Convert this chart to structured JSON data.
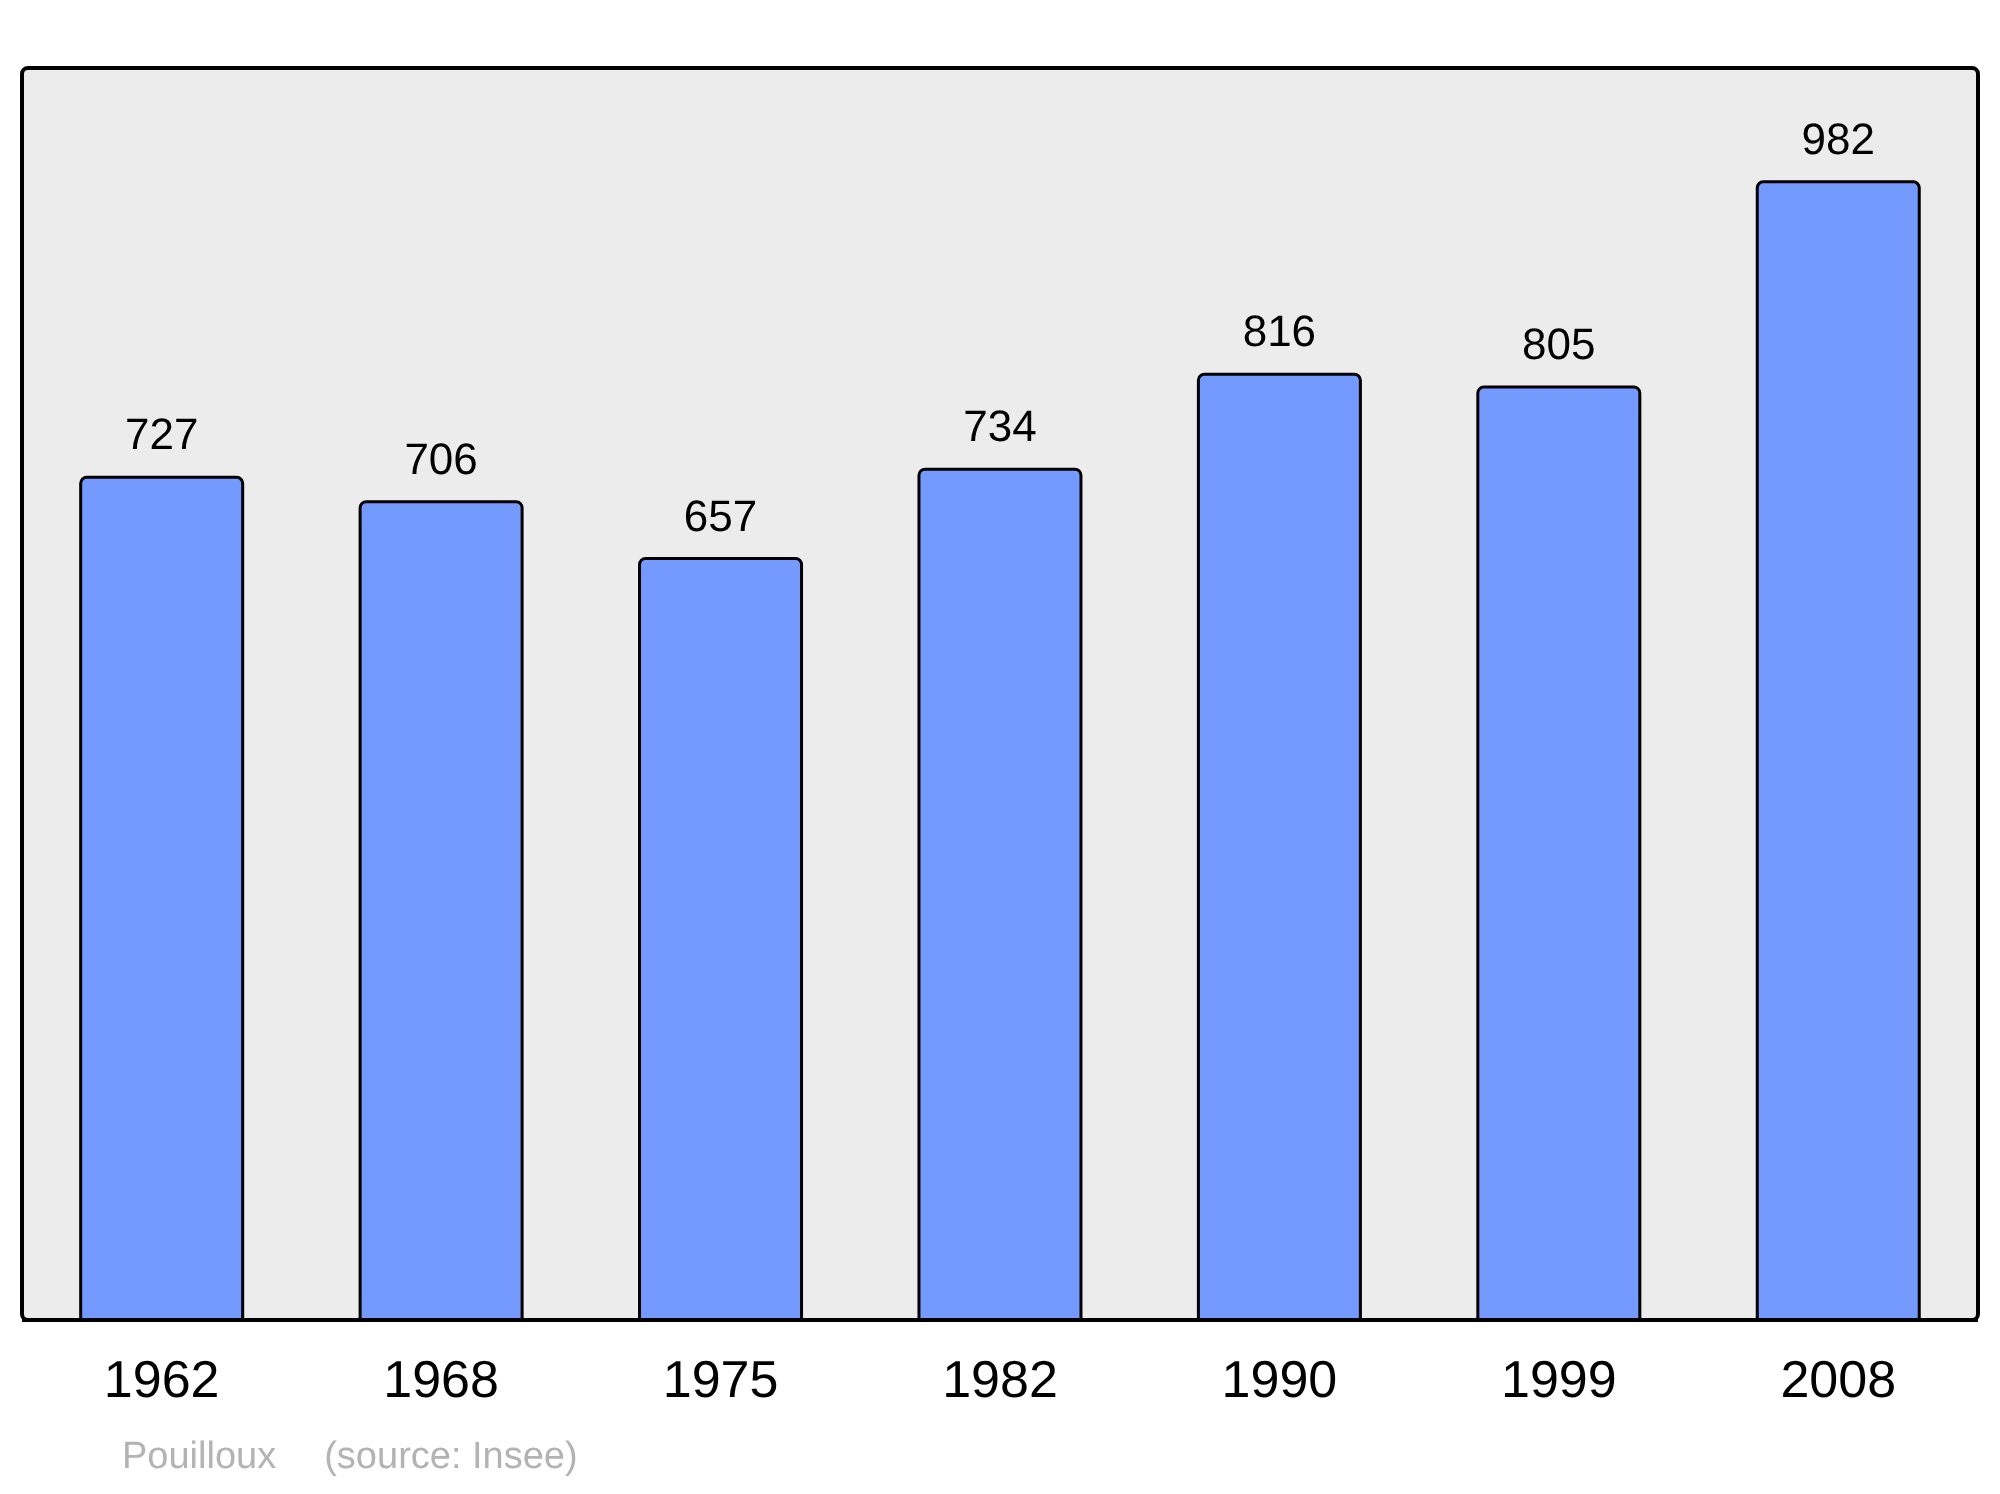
{
  "chart_data": {
    "type": "bar",
    "categories": [
      "1962",
      "1968",
      "1975",
      "1982",
      "1990",
      "1999",
      "2008"
    ],
    "values": [
      727,
      706,
      657,
      734,
      816,
      805,
      982
    ],
    "color": "#7499ff",
    "data_labels": true,
    "annotations": [
      "Pouilloux",
      "(source: Insee)"
    ]
  }
}
